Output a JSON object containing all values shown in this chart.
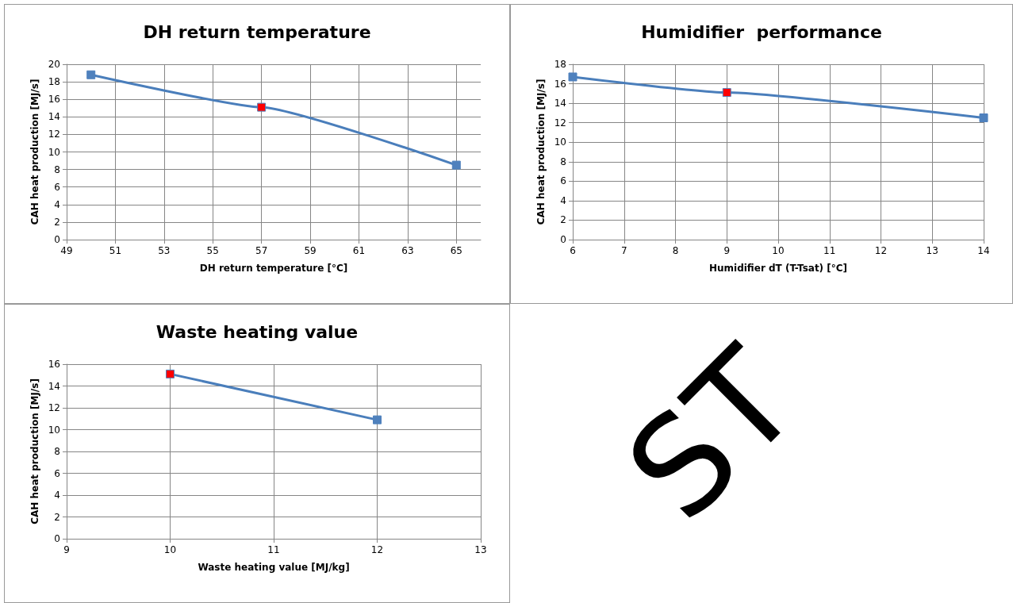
{
  "chart_data": [
    {
      "type": "line",
      "title": "DH return temperature",
      "xlabel": "DH return temperature [°C]",
      "ylabel": "CAH heat production [MJ/s]",
      "xlim": [
        49,
        66
      ],
      "xticks": [
        49,
        51,
        53,
        55,
        57,
        59,
        61,
        63,
        65
      ],
      "ylim": [
        0,
        20
      ],
      "yticks": [
        0,
        2,
        4,
        6,
        8,
        10,
        12,
        14,
        16,
        18,
        20
      ],
      "grid": true,
      "marker": "square",
      "line_style": "solid",
      "series": [
        {
          "x": [
            50,
            57,
            65
          ],
          "values": [
            18.8,
            15.1,
            8.5
          ],
          "color": "#4a7ebb",
          "colors": [
            "#4f81bd",
            "#ff0000",
            "#4f81bd"
          ]
        }
      ]
    },
    {
      "type": "line",
      "title": "Humidifier  performance",
      "xlabel": "Humidifier dT (T-Tsat) [°C]",
      "ylabel": "CAH heat production [MJ/s]",
      "xlim": [
        6,
        14
      ],
      "xticks": [
        6,
        7,
        8,
        9,
        10,
        11,
        12,
        13,
        14
      ],
      "ylim": [
        0,
        18
      ],
      "yticks": [
        0,
        2,
        4,
        6,
        8,
        10,
        12,
        14,
        16,
        18
      ],
      "grid": true,
      "marker": "square",
      "line_style": "solid",
      "series": [
        {
          "x": [
            6,
            9,
            14
          ],
          "values": [
            16.7,
            15.1,
            12.5
          ],
          "color": "#4a7ebb",
          "colors": [
            "#4f81bd",
            "#ff0000",
            "#4f81bd"
          ]
        }
      ]
    },
    {
      "type": "line",
      "title": "Waste heating value",
      "xlabel": "Waste heating value [MJ/kg]",
      "ylabel": "CAH heat production [MJ/s]",
      "xlim": [
        9,
        13
      ],
      "xticks": [
        9,
        10,
        11,
        12,
        13
      ],
      "ylim": [
        0,
        16
      ],
      "yticks": [
        0,
        2,
        4,
        6,
        8,
        10,
        12,
        14,
        16
      ],
      "grid": true,
      "marker": "square",
      "line_style": "solid",
      "series": [
        {
          "x": [
            10,
            12
          ],
          "values": [
            15.1,
            10.9
          ],
          "color": "#4a7ebb",
          "colors": [
            "#ff0000",
            "#4f81bd"
          ]
        }
      ]
    },
    {
      "type": "other",
      "annotations": [
        "ST"
      ]
    }
  ]
}
